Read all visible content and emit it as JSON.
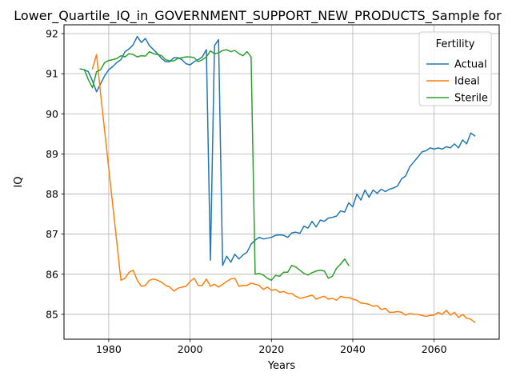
{
  "chart_data": {
    "type": "line",
    "title": "Lower_Quartile_IQ_in_GOVERNMENT_SUPPORT_NEW_PRODUCTS_Sample for",
    "xlabel": "Years",
    "ylabel": "IQ",
    "xlim": [
      1969,
      2076
    ],
    "ylim": [
      84.38,
      92.22
    ],
    "xticks": [
      1980,
      2000,
      2020,
      2040,
      2060
    ],
    "yticks": [
      85,
      86,
      87,
      88,
      89,
      90,
      91,
      92
    ],
    "grid": true,
    "legend": {
      "title": "Fertility",
      "placement": "top-right"
    },
    "series": [
      {
        "name": "Actual",
        "color": "#1f77b4",
        "x": [
          1974,
          1975,
          1976,
          1977,
          1978,
          1979,
          1980,
          1981,
          1982,
          1983,
          1984,
          1985,
          1986,
          1987,
          1988,
          1989,
          1990,
          1991,
          1992,
          1993,
          1994,
          1995,
          1996,
          1997,
          1998,
          1999,
          2000,
          2001,
          2002,
          2003,
          2004,
          2005,
          2006,
          2007,
          2008,
          2009,
          2010,
          2011,
          2012,
          2013,
          2014,
          2015,
          2016,
          2017,
          2018,
          2019,
          2020,
          2021,
          2022,
          2023,
          2024,
          2025,
          2026,
          2027,
          2028,
          2029,
          2030,
          2031,
          2032,
          2033,
          2034,
          2035,
          2036,
          2037,
          2038,
          2039,
          2040,
          2041,
          2042,
          2043,
          2044,
          2045,
          2046,
          2047,
          2048,
          2049,
          2050,
          2051,
          2052,
          2053,
          2054,
          2055,
          2056,
          2057,
          2058,
          2059,
          2060,
          2061,
          2062,
          2063,
          2064,
          2065,
          2066,
          2067,
          2068,
          2069,
          2070
        ],
        "y": [
          91.1,
          91.05,
          90.82,
          90.55,
          90.75,
          90.95,
          91.1,
          91.18,
          91.28,
          91.35,
          91.55,
          91.62,
          91.72,
          91.93,
          91.78,
          91.88,
          91.7,
          91.6,
          91.5,
          91.38,
          91.3,
          91.3,
          91.4,
          91.4,
          91.35,
          91.25,
          91.22,
          91.3,
          91.35,
          91.42,
          91.6,
          86.35,
          91.7,
          91.85,
          86.22,
          86.45,
          86.3,
          86.5,
          86.38,
          86.48,
          86.55,
          86.75,
          86.85,
          86.92,
          86.88,
          86.9,
          86.92,
          86.97,
          86.98,
          86.97,
          86.92,
          87.03,
          87.05,
          87.02,
          87.2,
          87.15,
          87.32,
          87.18,
          87.35,
          87.32,
          87.4,
          87.42,
          87.45,
          87.58,
          87.55,
          87.78,
          87.68,
          88.0,
          87.85,
          88.1,
          87.92,
          88.1,
          88.02,
          88.12,
          88.06,
          88.12,
          88.15,
          88.2,
          88.38,
          88.45,
          88.68,
          88.8,
          88.92,
          89.05,
          89.08,
          89.15,
          89.12,
          89.15,
          89.12,
          89.18,
          89.15,
          89.25,
          89.15,
          89.35,
          89.25,
          89.52,
          89.45
        ]
      },
      {
        "name": "Ideal",
        "color": "#ff7f0e",
        "x": [
          1976,
          1977,
          1978,
          1983,
          1984,
          1985,
          1986,
          1987,
          1988,
          1989,
          1990,
          1991,
          1992,
          1993,
          1994,
          1995,
          1996,
          1997,
          1998,
          1999,
          2000,
          2001,
          2002,
          2003,
          2004,
          2005,
          2006,
          2007,
          2008,
          2009,
          2010,
          2011,
          2012,
          2013,
          2014,
          2015,
          2016,
          2017,
          2018,
          2019,
          2020,
          2021,
          2022,
          2023,
          2024,
          2025,
          2026,
          2027,
          2028,
          2029,
          2030,
          2031,
          2032,
          2033,
          2034,
          2035,
          2036,
          2037,
          2038,
          2039,
          2040,
          2041,
          2042,
          2043,
          2044,
          2045,
          2046,
          2047,
          2048,
          2049,
          2050,
          2051,
          2052,
          2053,
          2054,
          2055,
          2056,
          2057,
          2058,
          2059,
          2060,
          2061,
          2062,
          2063,
          2064,
          2065,
          2066,
          2067,
          2068,
          2069,
          2070
        ],
        "y": [
          91.12,
          91.48,
          90.5,
          85.85,
          85.9,
          86.05,
          86.1,
          85.85,
          85.7,
          85.72,
          85.85,
          85.88,
          85.85,
          85.8,
          85.72,
          85.68,
          85.58,
          85.65,
          85.68,
          85.7,
          85.82,
          85.9,
          85.72,
          85.72,
          85.88,
          85.7,
          85.75,
          85.68,
          85.75,
          85.82,
          85.88,
          85.9,
          85.7,
          85.72,
          85.72,
          85.78,
          85.75,
          85.72,
          85.62,
          85.68,
          85.6,
          85.62,
          85.55,
          85.57,
          85.52,
          85.52,
          85.45,
          85.4,
          85.42,
          85.45,
          85.48,
          85.38,
          85.42,
          85.45,
          85.38,
          85.4,
          85.35,
          85.45,
          85.42,
          85.42,
          85.38,
          85.35,
          85.28,
          85.27,
          85.25,
          85.2,
          85.22,
          85.12,
          85.15,
          85.05,
          85.05,
          85.07,
          85.05,
          84.98,
          85.02,
          85.0,
          85.0,
          84.97,
          84.95,
          84.97,
          84.98,
          85.05,
          85.0,
          85.1,
          84.98,
          85.05,
          84.92,
          85.0,
          84.9,
          84.88,
          84.8
        ]
      },
      {
        "name": "Sterile",
        "color": "#2ca02c",
        "x": [
          1973,
          1974,
          1975,
          1976,
          1977,
          1978,
          1979,
          1980,
          1981,
          1982,
          1983,
          1984,
          1985,
          1986,
          1987,
          1988,
          1989,
          1990,
          1991,
          1992,
          1993,
          1994,
          1995,
          1996,
          1997,
          1998,
          1999,
          2000,
          2001,
          2002,
          2003,
          2004,
          2005,
          2006,
          2007,
          2008,
          2009,
          2010,
          2011,
          2012,
          2013,
          2014,
          2015,
          2016,
          2017,
          2018,
          2019,
          2020,
          2021,
          2022,
          2023,
          2024,
          2025,
          2026,
          2027,
          2028,
          2029,
          2030,
          2031,
          2032,
          2033,
          2034,
          2035,
          2036,
          2037,
          2038,
          2039
        ],
        "y": [
          91.12,
          91.1,
          90.85,
          90.65,
          91.05,
          91.1,
          91.28,
          91.33,
          91.35,
          91.38,
          91.45,
          91.42,
          91.5,
          91.48,
          91.42,
          91.45,
          91.44,
          91.55,
          91.5,
          91.48,
          91.45,
          91.35,
          91.32,
          91.32,
          91.38,
          91.4,
          91.42,
          91.42,
          91.4,
          91.3,
          91.35,
          91.42,
          91.57,
          91.5,
          91.52,
          91.58,
          91.6,
          91.55,
          91.58,
          91.5,
          91.45,
          91.55,
          91.42,
          86.0,
          86.02,
          85.98,
          85.9,
          85.85,
          85.97,
          85.95,
          86.05,
          86.05,
          86.22,
          86.18,
          86.1,
          86.02,
          85.98,
          86.04,
          86.08,
          86.1,
          86.08,
          85.9,
          85.95,
          86.15,
          86.25,
          86.38,
          86.22
        ]
      }
    ]
  }
}
